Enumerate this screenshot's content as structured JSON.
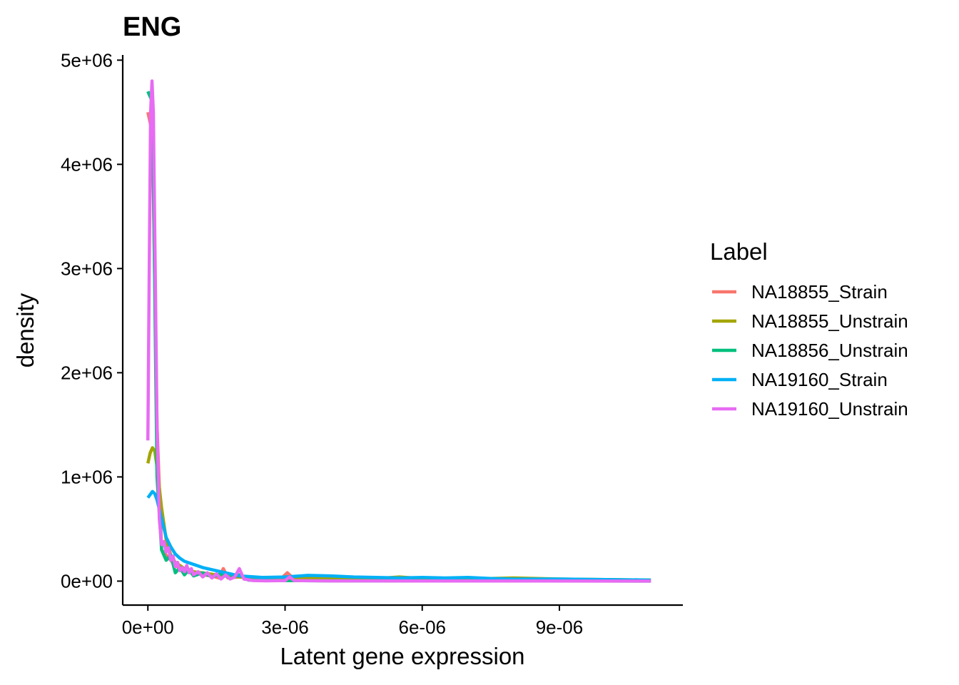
{
  "chart_data": {
    "type": "line",
    "title": "ENG",
    "xlabel": "Latent gene expression",
    "ylabel": "density",
    "xlim": [
      -5.5e-07,
      1.17e-05
    ],
    "ylim": [
      -230000.0,
      5050000.0
    ],
    "x_ticks": [
      0,
      3e-06,
      6e-06,
      9e-06
    ],
    "x_tick_labels": [
      "0e+00",
      "3e-06",
      "6e-06",
      "9e-06"
    ],
    "y_ticks": [
      0,
      1000000,
      2000000,
      3000000,
      4000000,
      5000000
    ],
    "y_tick_labels": [
      "0e+00",
      "1e+06",
      "2e+06",
      "3e+06",
      "4e+06",
      "5e+06"
    ],
    "grid": false,
    "legend": {
      "title": "Label",
      "position": "right"
    },
    "series": [
      {
        "name": "NA18855_Strain",
        "color": "#F8766D",
        "points": [
          [
            0,
            4500000
          ],
          [
            1e-07,
            4300000
          ],
          [
            2e-07,
            1500000
          ],
          [
            3e-07,
            300000
          ],
          [
            4e-07,
            250000
          ],
          [
            6e-07,
            150000
          ],
          [
            8e-07,
            100000
          ],
          [
            1e-06,
            80000
          ],
          [
            1.2e-06,
            60000
          ],
          [
            1.4e-06,
            50000
          ],
          [
            1.55e-06,
            30000
          ],
          [
            1.65e-06,
            120000
          ],
          [
            1.75e-06,
            30000
          ],
          [
            2e-06,
            40000
          ],
          [
            2.2e-06,
            30000
          ],
          [
            2.5e-06,
            30000
          ],
          [
            2.9e-06,
            20000
          ],
          [
            3.05e-06,
            80000
          ],
          [
            3.2e-06,
            20000
          ],
          [
            4e-06,
            30000
          ],
          [
            5e-06,
            20000
          ],
          [
            6e-06,
            20000
          ],
          [
            7e-06,
            15000
          ],
          [
            8e-06,
            20000
          ],
          [
            9e-06,
            15000
          ],
          [
            1e-05,
            10000
          ],
          [
            1.1e-05,
            5000
          ]
        ]
      },
      {
        "name": "NA18855_Unstrain",
        "color": "#A3A500",
        "points": [
          [
            0,
            1130000
          ],
          [
            5e-08,
            1230000
          ],
          [
            1e-07,
            1280000
          ],
          [
            1.5e-07,
            1250000
          ],
          [
            2e-07,
            1100000
          ],
          [
            3e-07,
            700000
          ],
          [
            4e-07,
            400000
          ],
          [
            5e-07,
            250000
          ],
          [
            6e-07,
            180000
          ],
          [
            8e-07,
            120000
          ],
          [
            1e-06,
            90000
          ],
          [
            1.5e-06,
            60000
          ],
          [
            2e-06,
            40000
          ],
          [
            2.5e-06,
            30000
          ],
          [
            3e-06,
            30000
          ],
          [
            4e-06,
            30000
          ],
          [
            5e-06,
            25000
          ],
          [
            5.5e-06,
            40000
          ],
          [
            6e-06,
            25000
          ],
          [
            7e-06,
            20000
          ],
          [
            8e-06,
            30000
          ],
          [
            9e-06,
            20000
          ],
          [
            1e-05,
            15000
          ],
          [
            1.1e-05,
            10000
          ]
        ]
      },
      {
        "name": "NA18856_Unstrain",
        "color": "#00BF7D",
        "points": [
          [
            0,
            4700000
          ],
          [
            1e-07,
            4600000
          ],
          [
            2e-07,
            1000000
          ],
          [
            3e-07,
            300000
          ],
          [
            4e-07,
            200000
          ],
          [
            5e-07,
            250000
          ],
          [
            6e-07,
            80000
          ],
          [
            7e-07,
            130000
          ],
          [
            8e-07,
            60000
          ],
          [
            9e-07,
            110000
          ],
          [
            1e-06,
            50000
          ],
          [
            1.2e-06,
            80000
          ],
          [
            1.4e-06,
            40000
          ],
          [
            1.6e-06,
            70000
          ],
          [
            1.8e-06,
            30000
          ],
          [
            2e-06,
            60000
          ],
          [
            2.2e-06,
            10000
          ],
          [
            2.5e-06,
            5000
          ],
          [
            3e-06,
            5000
          ],
          [
            4e-06,
            3000
          ],
          [
            6e-06,
            2000
          ],
          [
            8e-06,
            1000
          ],
          [
            1e-05,
            1000
          ],
          [
            1.1e-05,
            500
          ]
        ]
      },
      {
        "name": "NA19160_Strain",
        "color": "#00B0F6",
        "points": [
          [
            0,
            800000
          ],
          [
            5e-08,
            830000
          ],
          [
            1e-07,
            860000
          ],
          [
            1.5e-07,
            840000
          ],
          [
            2e-07,
            780000
          ],
          [
            3e-07,
            600000
          ],
          [
            4e-07,
            420000
          ],
          [
            5e-07,
            330000
          ],
          [
            6e-07,
            260000
          ],
          [
            7e-07,
            220000
          ],
          [
            8e-07,
            190000
          ],
          [
            1e-06,
            160000
          ],
          [
            1.2e-06,
            130000
          ],
          [
            1.5e-06,
            100000
          ],
          [
            1.8e-06,
            70000
          ],
          [
            2e-06,
            50000
          ],
          [
            2.5e-06,
            35000
          ],
          [
            3e-06,
            40000
          ],
          [
            3.5e-06,
            55000
          ],
          [
            4e-06,
            50000
          ],
          [
            4.5e-06,
            40000
          ],
          [
            5e-06,
            35000
          ],
          [
            5.5e-06,
            30000
          ],
          [
            6e-06,
            35000
          ],
          [
            6.5e-06,
            30000
          ],
          [
            7e-06,
            35000
          ],
          [
            7.5e-06,
            25000
          ],
          [
            8e-06,
            20000
          ],
          [
            9e-06,
            20000
          ],
          [
            1e-05,
            15000
          ],
          [
            1.1e-05,
            10000
          ]
        ]
      },
      {
        "name": "NA19160_Unstrain",
        "color": "#E76BF3",
        "points": [
          [
            0,
            1350000
          ],
          [
            3e-08,
            3000000
          ],
          [
            6e-08,
            4500000
          ],
          [
            9e-08,
            4800000
          ],
          [
            1.2e-07,
            4500000
          ],
          [
            1.6e-07,
            3000000
          ],
          [
            2e-07,
            1500000
          ],
          [
            2.5e-07,
            600000
          ],
          [
            3e-07,
            350000
          ],
          [
            3.5e-07,
            380000
          ],
          [
            4e-07,
            280000
          ],
          [
            4.5e-07,
            320000
          ],
          [
            5e-07,
            200000
          ],
          [
            5.5e-07,
            240000
          ],
          [
            6e-07,
            140000
          ],
          [
            6.5e-07,
            180000
          ],
          [
            7e-07,
            100000
          ],
          [
            7.5e-07,
            130000
          ],
          [
            8e-07,
            90000
          ],
          [
            8.5e-07,
            150000
          ],
          [
            9e-07,
            80000
          ],
          [
            9.5e-07,
            120000
          ],
          [
            1e-06,
            60000
          ],
          [
            1.1e-06,
            90000
          ],
          [
            1.2e-06,
            40000
          ],
          [
            1.3e-06,
            80000
          ],
          [
            1.4e-06,
            30000
          ],
          [
            1.5e-06,
            70000
          ],
          [
            1.6e-06,
            20000
          ],
          [
            1.7e-06,
            60000
          ],
          [
            1.8e-06,
            20000
          ],
          [
            1.9e-06,
            40000
          ],
          [
            2e-06,
            120000
          ],
          [
            2.1e-06,
            20000
          ],
          [
            2.3e-06,
            5000
          ],
          [
            2.6e-06,
            3000
          ],
          [
            3e-06,
            5000
          ],
          [
            3.1e-06,
            40000
          ],
          [
            3.2e-06,
            5000
          ],
          [
            4e-06,
            2000
          ],
          [
            6e-06,
            1000
          ],
          [
            8e-06,
            1000
          ],
          [
            1e-05,
            500
          ],
          [
            1.1e-05,
            500
          ]
        ]
      }
    ]
  }
}
